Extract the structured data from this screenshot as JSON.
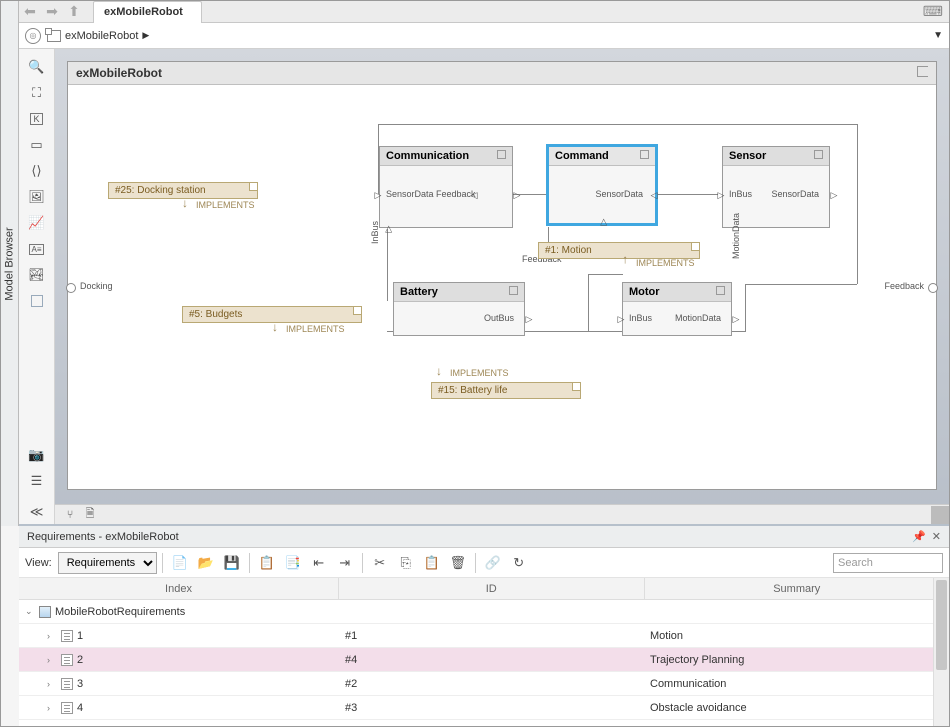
{
  "leftRail": {
    "label": "Model Browser"
  },
  "tabs": {
    "active": "exMobileRobot"
  },
  "breadcrumb": {
    "root": "exMobileRobot"
  },
  "canvas": {
    "title": "exMobileRobot",
    "external_ports": {
      "in": "Docking",
      "out": "Feedback"
    },
    "blocks": {
      "communication": {
        "name": "Communication",
        "ports": {
          "in1": "SensorData",
          "in2": "Feedback",
          "out": "Feedback",
          "bottom": "InBus"
        }
      },
      "command": {
        "name": "Command",
        "ports": {
          "out": "SensorData"
        }
      },
      "sensor": {
        "name": "Sensor",
        "ports": {
          "in": "InBus",
          "out": "SensorData",
          "bottom": "MotionData"
        }
      },
      "battery": {
        "name": "Battery",
        "ports": {
          "out": "OutBus"
        }
      },
      "motor": {
        "name": "Motor",
        "ports": {
          "in": "InBus",
          "out": "MotionData"
        }
      }
    },
    "annotations": {
      "docking": {
        "text": "#25: Docking station",
        "implements": "IMPLEMENTS"
      },
      "budgets": {
        "text": "#5: Budgets",
        "implements": "IMPLEMENTS"
      },
      "motion": {
        "text": "#1: Motion",
        "implements": "IMPLEMENTS"
      },
      "battery_life": {
        "text": "#15: Battery life",
        "implements": "IMPLEMENTS"
      }
    }
  },
  "requirements": {
    "title": "Requirements - exMobileRobot",
    "view_label": "View:",
    "view_value": "Requirements",
    "search_placeholder": "Search",
    "columns": {
      "index": "Index",
      "id": "ID",
      "summary": "Summary"
    },
    "root": "MobileRobotRequirements",
    "rows": [
      {
        "index": "1",
        "id": "#1",
        "summary": "Motion",
        "selected": false
      },
      {
        "index": "2",
        "id": "#4",
        "summary": "Trajectory Planning",
        "selected": true
      },
      {
        "index": "3",
        "id": "#2",
        "summary": "Communication",
        "selected": false
      },
      {
        "index": "4",
        "id": "#3",
        "summary": "Obstacle avoidance",
        "selected": false
      }
    ]
  }
}
